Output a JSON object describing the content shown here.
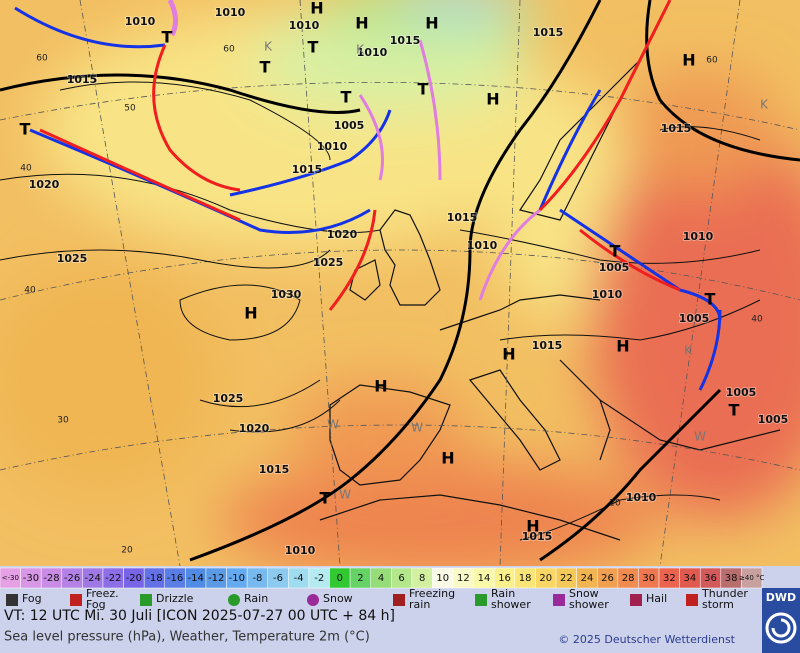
{
  "map": {
    "isobar_labels": [
      "1010",
      "1010",
      "1010",
      "1015",
      "1015",
      "1010",
      "1015",
      "1005",
      "1010",
      "1015",
      "1015",
      "1020",
      "1020",
      "1015",
      "1010",
      "1025",
      "1025",
      "1005",
      "1010",
      "1030",
      "1010",
      "1005",
      "1015",
      "1025",
      "1020",
      "1005",
      "1005",
      "1015",
      "1010",
      "1015",
      "1010"
    ],
    "temperature_labels": [
      "60",
      "60",
      "50",
      "40",
      "40",
      "40",
      "30",
      "20",
      "20",
      "60"
    ],
    "pressure_centers": [
      "H",
      "H",
      "H",
      "H",
      "H",
      "H",
      "H",
      "H",
      "H",
      "H",
      "H",
      "T",
      "T",
      "T",
      "T",
      "T",
      "T",
      "T",
      "T",
      "T",
      "T"
    ],
    "air_mass_labels": [
      "K",
      "K",
      "K",
      "K",
      "W",
      "W",
      "W",
      "W"
    ]
  },
  "legend": {
    "temperature_scale": {
      "labels": [
        "<-30",
        "-30",
        "-28",
        "-26",
        "-24",
        "-22",
        "-20",
        "-18",
        "-16",
        "-14",
        "-12",
        "-10",
        "-8",
        "-6",
        "-4",
        "-2",
        "0",
        "2",
        "4",
        "6",
        "8",
        "10",
        "12",
        "14",
        "16",
        "18",
        "20",
        "22",
        "24",
        "26",
        "28",
        "30",
        "32",
        "34",
        "36",
        "38",
        "≥40 °C"
      ],
      "colors": [
        "#e6a0e6",
        "#d796e6",
        "#c88ce6",
        "#b482e6",
        "#a078e6",
        "#8c6ee6",
        "#7864e6",
        "#6470e6",
        "#5a7ee6",
        "#508ce6",
        "#5a9ae6",
        "#64aaf0",
        "#78baf0",
        "#8ccaf0",
        "#a0dcf0",
        "#b4eaf0",
        "#32c832",
        "#64d264",
        "#96dc78",
        "#b4e68c",
        "#d2f0a0",
        "#fafae6",
        "#fafac8",
        "#fafaaa",
        "#faf08c",
        "#fae678",
        "#fad764",
        "#f5c85a",
        "#f0b450",
        "#f0a050",
        "#f08c50",
        "#f07850",
        "#eb6450",
        "#e15a50",
        "#d25a5a",
        "#b96e6e",
        "#c8a0a0"
      ]
    },
    "weather": [
      {
        "lines": [
          "Fog"
        ]
      },
      {
        "lines": [
          "Freez.",
          "Fog"
        ]
      },
      {
        "lines": [
          "Drizzle"
        ]
      },
      {
        "lines": [
          "Rain"
        ]
      },
      {
        "lines": [
          "Snow"
        ]
      },
      {
        "lines": [
          "Freezing",
          "rain"
        ]
      },
      {
        "lines": [
          "Rain",
          "shower"
        ]
      },
      {
        "lines": [
          "Snow",
          "shower"
        ]
      },
      {
        "lines": [
          "Hail"
        ]
      },
      {
        "lines": [
          "Thunder",
          "storm"
        ]
      }
    ]
  },
  "footer": {
    "valid_time": "VT: 12 UTC Mi.  30 Juli [ICON 2025-07-27  00 UTC + 84 h]",
    "description": "Sea level pressure (hPa), Weather, Temperature 2m (°C)",
    "copyright": "© 2025 Deutscher Wetterdienst",
    "logo": "DWD"
  }
}
